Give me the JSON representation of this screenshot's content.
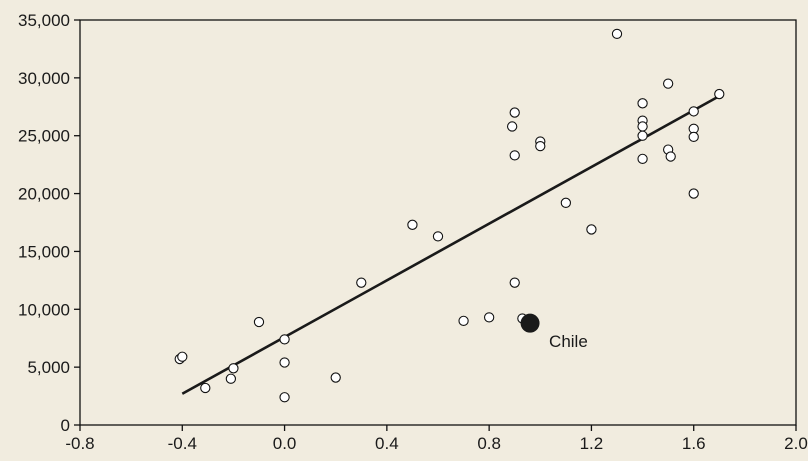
{
  "chart_data": {
    "type": "scatter",
    "title": "",
    "xlabel": "",
    "ylabel": "",
    "xlim": [
      -0.8,
      2.0
    ],
    "ylim": [
      0,
      35000
    ],
    "x_ticks": [
      -0.8,
      -0.4,
      0.0,
      0.4,
      0.8,
      1.2,
      1.6,
      2.0
    ],
    "x_tick_labels": [
      "-0.8",
      "-0.4",
      "0.0",
      "0.4",
      "0.8",
      "1.2",
      "1.6",
      "2.0"
    ],
    "y_ticks": [
      0,
      5000,
      10000,
      15000,
      20000,
      25000,
      30000,
      35000
    ],
    "y_tick_labels": [
      "0",
      "5,000",
      "10,000",
      "15,000",
      "20,000",
      "25,000",
      "30,000",
      "35,000"
    ],
    "grid": false,
    "points": [
      {
        "x": -0.41,
        "y": 5700
      },
      {
        "x": -0.4,
        "y": 5900
      },
      {
        "x": -0.31,
        "y": 3200
      },
      {
        "x": -0.2,
        "y": 4900
      },
      {
        "x": -0.21,
        "y": 4000
      },
      {
        "x": -0.1,
        "y": 8900
      },
      {
        "x": 0.0,
        "y": 7400
      },
      {
        "x": 0.0,
        "y": 5400
      },
      {
        "x": 0.0,
        "y": 2400
      },
      {
        "x": 0.2,
        "y": 4100
      },
      {
        "x": 0.3,
        "y": 12300
      },
      {
        "x": 0.5,
        "y": 17300
      },
      {
        "x": 0.6,
        "y": 16300
      },
      {
        "x": 0.7,
        "y": 9000
      },
      {
        "x": 0.8,
        "y": 9300
      },
      {
        "x": 0.9,
        "y": 12300
      },
      {
        "x": 0.93,
        "y": 9200
      },
      {
        "x": 0.9,
        "y": 27000
      },
      {
        "x": 0.89,
        "y": 25800
      },
      {
        "x": 0.9,
        "y": 23300
      },
      {
        "x": 1.0,
        "y": 24500
      },
      {
        "x": 1.0,
        "y": 24100
      },
      {
        "x": 1.1,
        "y": 19200
      },
      {
        "x": 1.2,
        "y": 16900
      },
      {
        "x": 1.3,
        "y": 33800
      },
      {
        "x": 1.4,
        "y": 27800
      },
      {
        "x": 1.4,
        "y": 26300
      },
      {
        "x": 1.4,
        "y": 25800
      },
      {
        "x": 1.4,
        "y": 25000
      },
      {
        "x": 1.4,
        "y": 23000
      },
      {
        "x": 1.5,
        "y": 29500
      },
      {
        "x": 1.5,
        "y": 23800
      },
      {
        "x": 1.51,
        "y": 23200
      },
      {
        "x": 1.6,
        "y": 27100
      },
      {
        "x": 1.6,
        "y": 25600
      },
      {
        "x": 1.6,
        "y": 24900
      },
      {
        "x": 1.6,
        "y": 20000
      },
      {
        "x": 1.7,
        "y": 28600
      }
    ],
    "highlight": {
      "x": 0.96,
      "y": 8800,
      "label": "Chile"
    },
    "trend_line": {
      "x": [
        -0.4,
        1.69
      ],
      "y": [
        2700,
        28300
      ]
    },
    "colors": {
      "background": "#f1ecdf",
      "axis": "#111111",
      "marker_fill": "#ffffff",
      "marker_edge": "#111111",
      "highlight_fill": "#1a1a1a",
      "trend": "#1a1a1a"
    }
  }
}
